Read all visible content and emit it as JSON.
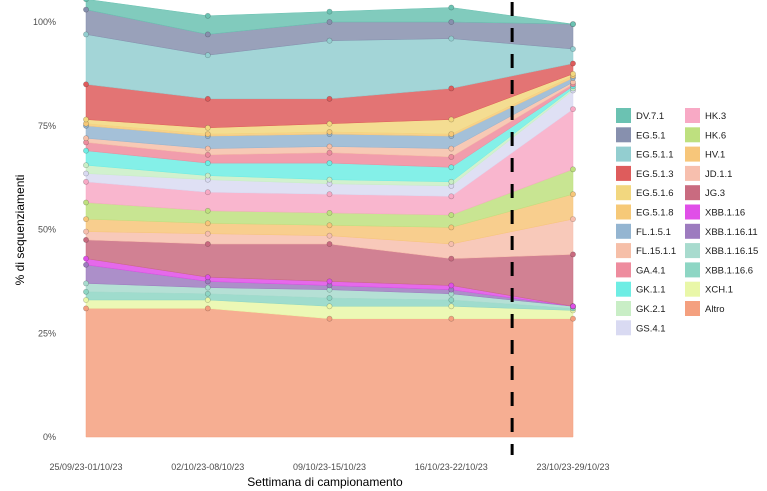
{
  "chart_data": {
    "type": "area",
    "stacked": true,
    "normalized_percent": true,
    "xlabel": "Settimana di campionamento",
    "ylabel": "% di sequenziamenti",
    "y_ticks": [
      "0%",
      "25%",
      "50%",
      "75%",
      "100%"
    ],
    "ylim": [
      0,
      100
    ],
    "grid": false,
    "legend_position": "right",
    "categories": [
      "25/09/23-01/10/23",
      "02/10/23-08/10/23",
      "09/10/23-15/10/23",
      "16/10/23-22/10/23",
      "23/10/23-29/10/23"
    ],
    "vertical_marker": {
      "between_categories": [
        3,
        4
      ],
      "style": "dashed",
      "color": "#000000"
    },
    "series": [
      {
        "name": "Altro",
        "color": "#F4A07F",
        "values": [
          31.0,
          31.0,
          28.5,
          28.5,
          28.5
        ]
      },
      {
        "name": "XCH.1",
        "color": "#E9F7A8",
        "values": [
          2.0,
          2.0,
          3.0,
          3.0,
          2.0
        ]
      },
      {
        "name": "XBB.1.16.6",
        "color": "#8ED6C4",
        "values": [
          2.0,
          1.5,
          2.0,
          1.5,
          0.5
        ]
      },
      {
        "name": "XBB.1.16.15",
        "color": "#A8DBCE",
        "values": [
          2.0,
          1.5,
          2.0,
          1.5,
          0.5
        ]
      },
      {
        "name": "XBB.1.16.11",
        "color": "#9D7BBF",
        "values": [
          4.5,
          1.5,
          1.0,
          1.0,
          0.0
        ]
      },
      {
        "name": "XBB.1.16",
        "color": "#E04FE8",
        "values": [
          1.5,
          1.0,
          1.0,
          1.0,
          0.0
        ]
      },
      {
        "name": "JG.3",
        "color": "#C96B80",
        "values": [
          4.5,
          8.0,
          9.0,
          6.5,
          12.5
        ]
      },
      {
        "name": "JD.1.1",
        "color": "#F7BFAE",
        "values": [
          2.0,
          2.5,
          2.0,
          3.5,
          8.5
        ]
      },
      {
        "name": "HV.1",
        "color": "#F7C67A",
        "values": [
          3.0,
          2.5,
          2.5,
          4.0,
          6.0
        ]
      },
      {
        "name": "HK.6",
        "color": "#BEE07F",
        "values": [
          4.0,
          3.0,
          3.0,
          3.0,
          6.0
        ]
      },
      {
        "name": "HK.3",
        "color": "#F8A9C5",
        "values": [
          5.0,
          4.5,
          4.5,
          4.5,
          14.5
        ]
      },
      {
        "name": "GS.4.1",
        "color": "#D9DAF2",
        "values": [
          2.0,
          3.0,
          2.5,
          2.5,
          4.5
        ]
      },
      {
        "name": "GK.2.1",
        "color": "#C9EEC6",
        "values": [
          2.0,
          1.0,
          1.0,
          1.0,
          0.5
        ]
      },
      {
        "name": "GK.1.1",
        "color": "#6EEDE4",
        "values": [
          3.5,
          3.0,
          4.0,
          3.5,
          0.5
        ]
      },
      {
        "name": "GA.4.1",
        "color": "#EE8C9E",
        "values": [
          2.0,
          2.0,
          2.5,
          2.5,
          0.5
        ]
      },
      {
        "name": "FL.15.1.1",
        "color": "#F6BFA8",
        "values": [
          1.0,
          1.5,
          1.5,
          2.0,
          0.5
        ]
      },
      {
        "name": "FL.1.5.1",
        "color": "#94B5D1",
        "values": [
          3.0,
          3.0,
          3.0,
          3.0,
          1.0
        ]
      },
      {
        "name": "EG.5.1.8",
        "color": "#F6C978",
        "values": [
          0.5,
          0.5,
          0.5,
          0.5,
          0.5
        ]
      },
      {
        "name": "EG.5.1.6",
        "color": "#F2D77F",
        "values": [
          1.0,
          1.5,
          2.0,
          3.5,
          0.5
        ]
      },
      {
        "name": "EG.5.1.3",
        "color": "#DE5C5C",
        "values": [
          8.5,
          7.0,
          6.0,
          7.5,
          2.5
        ]
      },
      {
        "name": "EG.5.1.1",
        "color": "#93CED0",
        "values": [
          12.0,
          10.5,
          14.0,
          12.0,
          3.5
        ]
      },
      {
        "name": "EG.5.1",
        "color": "#8790AE",
        "values": [
          6.0,
          5.0,
          4.5,
          4.0,
          6.0
        ]
      },
      {
        "name": "DV.7.1",
        "color": "#6BC2B2",
        "values": [
          2.5,
          4.5,
          2.5,
          3.5,
          0.0
        ]
      }
    ]
  },
  "legend": {
    "col1": [
      "DV.7.1",
      "EG.5.1",
      "EG.5.1.1",
      "EG.5.1.3",
      "EG.5.1.6",
      "EG.5.1.8",
      "FL.1.5.1",
      "FL.15.1.1",
      "GA.4.1",
      "GK.1.1",
      "GK.2.1",
      "GS.4.1"
    ],
    "col2": [
      "HK.3",
      "HK.6",
      "HV.1",
      "JD.1.1",
      "JG.3",
      "XBB.1.16",
      "XBB.1.16.11",
      "XBB.1.16.15",
      "XBB.1.16.6",
      "XCH.1",
      "Altro"
    ]
  }
}
